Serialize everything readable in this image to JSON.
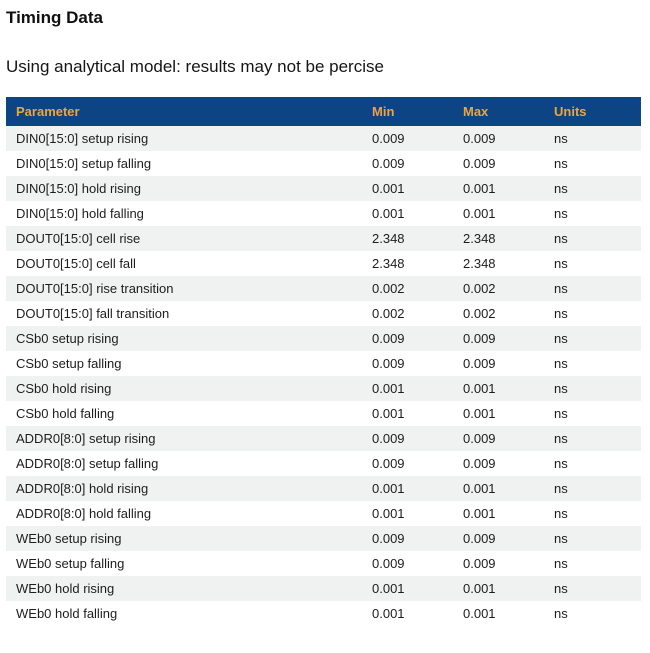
{
  "page": {
    "title": "Timing Data",
    "subtitle": "Using analytical model: results may not be percise"
  },
  "colors": {
    "header_bg": "#0d4584",
    "header_text": "#efa43c",
    "row_alt_bg": "#f0f1f1",
    "body_text": "#1d1d1d"
  },
  "table": {
    "headers": [
      "Parameter",
      "Min",
      "Max",
      "Units"
    ],
    "rows": [
      {
        "parameter": "DIN0[15:0] setup rising",
        "min": "0.009",
        "max": "0.009",
        "units": "ns"
      },
      {
        "parameter": "DIN0[15:0] setup falling",
        "min": "0.009",
        "max": "0.009",
        "units": "ns"
      },
      {
        "parameter": "DIN0[15:0] hold rising",
        "min": "0.001",
        "max": "0.001",
        "units": "ns"
      },
      {
        "parameter": "DIN0[15:0] hold falling",
        "min": "0.001",
        "max": "0.001",
        "units": "ns"
      },
      {
        "parameter": "DOUT0[15:0] cell rise",
        "min": "2.348",
        "max": "2.348",
        "units": "ns"
      },
      {
        "parameter": "DOUT0[15:0] cell fall",
        "min": "2.348",
        "max": "2.348",
        "units": "ns"
      },
      {
        "parameter": "DOUT0[15:0] rise transition",
        "min": "0.002",
        "max": "0.002",
        "units": "ns"
      },
      {
        "parameter": "DOUT0[15:0] fall transition",
        "min": "0.002",
        "max": "0.002",
        "units": "ns"
      },
      {
        "parameter": "CSb0 setup rising",
        "min": "0.009",
        "max": "0.009",
        "units": "ns"
      },
      {
        "parameter": "CSb0 setup falling",
        "min": "0.009",
        "max": "0.009",
        "units": "ns"
      },
      {
        "parameter": "CSb0 hold rising",
        "min": "0.001",
        "max": "0.001",
        "units": "ns"
      },
      {
        "parameter": "CSb0 hold falling",
        "min": "0.001",
        "max": "0.001",
        "units": "ns"
      },
      {
        "parameter": "ADDR0[8:0] setup rising",
        "min": "0.009",
        "max": "0.009",
        "units": "ns"
      },
      {
        "parameter": "ADDR0[8:0] setup falling",
        "min": "0.009",
        "max": "0.009",
        "units": "ns"
      },
      {
        "parameter": "ADDR0[8:0] hold rising",
        "min": "0.001",
        "max": "0.001",
        "units": "ns"
      },
      {
        "parameter": "ADDR0[8:0] hold falling",
        "min": "0.001",
        "max": "0.001",
        "units": "ns"
      },
      {
        "parameter": "WEb0 setup rising",
        "min": "0.009",
        "max": "0.009",
        "units": "ns"
      },
      {
        "parameter": "WEb0 setup falling",
        "min": "0.009",
        "max": "0.009",
        "units": "ns"
      },
      {
        "parameter": "WEb0 hold rising",
        "min": "0.001",
        "max": "0.001",
        "units": "ns"
      },
      {
        "parameter": "WEb0 hold falling",
        "min": "0.001",
        "max": "0.001",
        "units": "ns"
      }
    ]
  }
}
